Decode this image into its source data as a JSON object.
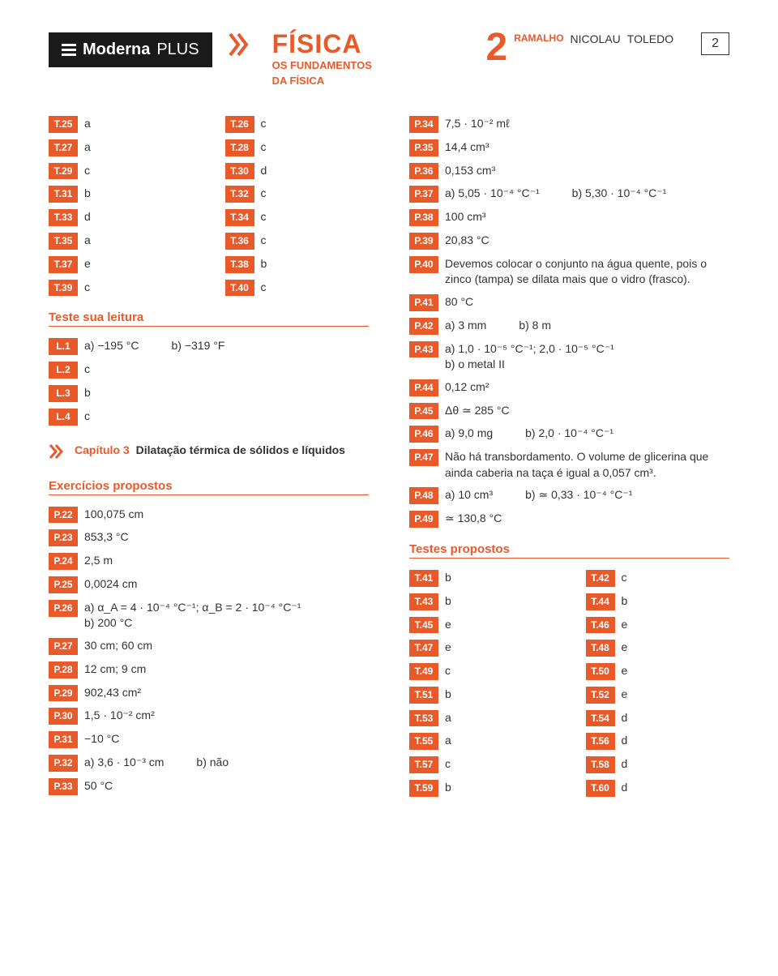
{
  "header": {
    "brand_main": "Moderna",
    "brand_plus": "PLUS",
    "subject": "FÍSICA",
    "subject_sub1": "OS FUNDAMENTOS",
    "subject_sub2": "DA FÍSICA",
    "volume": "2",
    "authors": [
      "RAMALHO",
      "NICOLAU",
      "TOLEDO"
    ],
    "page_number": "2"
  },
  "colors": {
    "accent": "#e85a2a",
    "brand_bg": "#1a1a1a",
    "text": "#333333"
  },
  "left": {
    "pairs_top": [
      {
        "l": {
          "tag": "T.25",
          "ans": "a"
        },
        "r": {
          "tag": "T.26",
          "ans": "c"
        }
      },
      {
        "l": {
          "tag": "T.27",
          "ans": "a"
        },
        "r": {
          "tag": "T.28",
          "ans": "c"
        }
      },
      {
        "l": {
          "tag": "T.29",
          "ans": "c"
        },
        "r": {
          "tag": "T.30",
          "ans": "d"
        }
      },
      {
        "l": {
          "tag": "T.31",
          "ans": "b"
        },
        "r": {
          "tag": "T.32",
          "ans": "c"
        }
      },
      {
        "l": {
          "tag": "T.33",
          "ans": "d"
        },
        "r": {
          "tag": "T.34",
          "ans": "c"
        }
      },
      {
        "l": {
          "tag": "T.35",
          "ans": "a"
        },
        "r": {
          "tag": "T.36",
          "ans": "c"
        }
      },
      {
        "l": {
          "tag": "T.37",
          "ans": "e"
        },
        "r": {
          "tag": "T.38",
          "ans": "b"
        }
      },
      {
        "l": {
          "tag": "T.39",
          "ans": "c"
        },
        "r": {
          "tag": "T.40",
          "ans": "c"
        }
      }
    ],
    "section_reading": "Teste sua leitura",
    "reading": [
      {
        "tag": "L.1",
        "parts": [
          "a)  −195 °C",
          "b)  −319 °F"
        ]
      },
      {
        "tag": "L.2",
        "ans": "c"
      },
      {
        "tag": "L.3",
        "ans": "b"
      },
      {
        "tag": "L.4",
        "ans": "c"
      }
    ],
    "chapter": {
      "label": "Capítulo 3",
      "title": "Dilatação térmica de sólidos e líquidos"
    },
    "section_ex": "Exercícios propostos",
    "exercises": [
      {
        "tag": "P.22",
        "ans": "100,075 cm"
      },
      {
        "tag": "P.23",
        "ans": "853,3 °C"
      },
      {
        "tag": "P.24",
        "ans": "2,5 m"
      },
      {
        "tag": "P.25",
        "ans": "0,0024 cm"
      },
      {
        "tag": "P.26",
        "lines": [
          "a)  α_A = 4 · 10⁻⁴ °C⁻¹; α_B = 2 · 10⁻⁴ °C⁻¹",
          "b)  200 °C"
        ]
      },
      {
        "tag": "P.27",
        "ans": "30 cm; 60 cm"
      },
      {
        "tag": "P.28",
        "ans": "12 cm; 9 cm"
      },
      {
        "tag": "P.29",
        "ans": "902,43 cm²"
      },
      {
        "tag": "P.30",
        "ans": "1,5 · 10⁻² cm²"
      },
      {
        "tag": "P.31",
        "ans": "−10 °C"
      },
      {
        "tag": "P.32",
        "parts": [
          "a)  3,6 · 10⁻³ cm",
          "b)  não"
        ]
      },
      {
        "tag": "P.33",
        "ans": "50 °C"
      }
    ]
  },
  "right": {
    "answers": [
      {
        "tag": "P.34",
        "ans": "7,5 · 10⁻² mℓ"
      },
      {
        "tag": "P.35",
        "ans": "14,4 cm³"
      },
      {
        "tag": "P.36",
        "ans": "0,153 cm³"
      },
      {
        "tag": "P.37",
        "parts": [
          "a)  5,05 · 10⁻⁴ °C⁻¹",
          "b)  5,30 · 10⁻⁴ °C⁻¹"
        ]
      },
      {
        "tag": "P.38",
        "ans": "100 cm³"
      },
      {
        "tag": "P.39",
        "ans": "20,83 °C"
      },
      {
        "tag": "P.40",
        "ans": "Devemos colocar o conjunto na água quente, pois o zinco (tampa) se dilata mais que o vidro (frasco)."
      },
      {
        "tag": "P.41",
        "ans": "80 °C"
      },
      {
        "tag": "P.42",
        "parts": [
          "a)  3 mm",
          "b)  8 m"
        ]
      },
      {
        "tag": "P.43",
        "lines": [
          "a)  1,0 · 10⁻⁵ °C⁻¹; 2,0 · 10⁻⁵ °C⁻¹",
          "b)  o metal II"
        ]
      },
      {
        "tag": "P.44",
        "ans": "0,12 cm²"
      },
      {
        "tag": "P.45",
        "ans": "Δθ ≃ 285 °C"
      },
      {
        "tag": "P.46",
        "parts": [
          "a)  9,0 mg",
          "b)  2,0 · 10⁻⁴ °C⁻¹"
        ]
      },
      {
        "tag": "P.47",
        "ans": "Não há transbordamento. O volume de glicerina que ainda caberia na taça é igual a 0,057 cm³."
      },
      {
        "tag": "P.48",
        "parts": [
          "a)  10 cm³",
          "b)  ≃ 0,33 · 10⁻⁴ °C⁻¹"
        ]
      },
      {
        "tag": "P.49",
        "ans": "≃ 130,8 °C"
      }
    ],
    "section_tests": "Testes propostos",
    "tests": [
      {
        "l": {
          "tag": "T.41",
          "ans": "b"
        },
        "r": {
          "tag": "T.42",
          "ans": "c"
        }
      },
      {
        "l": {
          "tag": "T.43",
          "ans": "b"
        },
        "r": {
          "tag": "T.44",
          "ans": "b"
        }
      },
      {
        "l": {
          "tag": "T.45",
          "ans": "e"
        },
        "r": {
          "tag": "T.46",
          "ans": "e"
        }
      },
      {
        "l": {
          "tag": "T.47",
          "ans": "e"
        },
        "r": {
          "tag": "T.48",
          "ans": "e"
        }
      },
      {
        "l": {
          "tag": "T.49",
          "ans": "c"
        },
        "r": {
          "tag": "T.50",
          "ans": "e"
        }
      },
      {
        "l": {
          "tag": "T.51",
          "ans": "b"
        },
        "r": {
          "tag": "T.52",
          "ans": "e"
        }
      },
      {
        "l": {
          "tag": "T.53",
          "ans": "a"
        },
        "r": {
          "tag": "T.54",
          "ans": "d"
        }
      },
      {
        "l": {
          "tag": "T.55",
          "ans": "a"
        },
        "r": {
          "tag": "T.56",
          "ans": "d"
        }
      },
      {
        "l": {
          "tag": "T.57",
          "ans": "c"
        },
        "r": {
          "tag": "T.58",
          "ans": "d"
        }
      },
      {
        "l": {
          "tag": "T.59",
          "ans": "b"
        },
        "r": {
          "tag": "T.60",
          "ans": "d"
        }
      }
    ]
  }
}
